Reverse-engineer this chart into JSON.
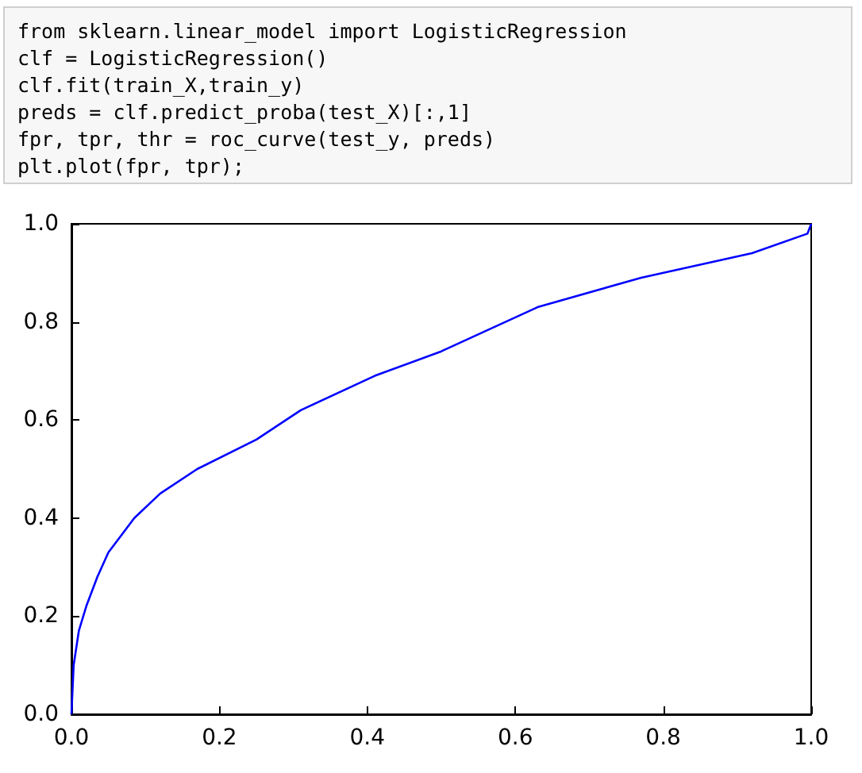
{
  "chart_data": {
    "type": "line",
    "annotations": [
      "from sklearn.linear_model import LogisticRegression",
      "clf = LogisticRegression()",
      "clf.fit(train_X,train_y)",
      "preds = clf.predict_proba(test_X)[:,1]",
      "fpr, tpr, thr = roc_curve(test_y, preds)",
      "plt.plot(fpr, tpr);"
    ],
    "x": [
      0,
      0.003,
      0.01,
      0.02,
      0.035,
      0.05,
      0.065,
      0.085,
      0.12,
      0.17,
      0.25,
      0.31,
      0.41,
      0.5,
      0.63,
      0.77,
      0.92,
      0.995,
      1
    ],
    "series": [
      {
        "color": "#0000ff",
        "values": [
          0,
          0.1,
          0.17,
          0.22,
          0.28,
          0.33,
          0.36,
          0.4,
          0.45,
          0.5,
          0.56,
          0.62,
          0.69,
          0.74,
          0.83,
          0.89,
          0.94,
          0.98,
          1
        ]
      }
    ],
    "xlim": [
      0,
      1
    ],
    "ylim": [
      0,
      1
    ],
    "xticks": [
      {
        "value": 0,
        "label": "0.0"
      },
      {
        "value": 0.2,
        "label": "0.2"
      },
      {
        "value": 0.4,
        "label": "0.4"
      },
      {
        "value": 0.6,
        "label": "0.6"
      },
      {
        "value": 0.8,
        "label": "0.8"
      },
      {
        "value": 1,
        "label": "1.0"
      }
    ],
    "yticks": [
      {
        "value": 0,
        "label": "0.0"
      },
      {
        "value": 0.2,
        "label": "0.2"
      },
      {
        "value": 0.4,
        "label": "0.4"
      },
      {
        "value": 0.6,
        "label": "0.6"
      },
      {
        "value": 0.8,
        "label": "0.8"
      },
      {
        "value": 1,
        "label": "1.0"
      }
    ],
    "grid": false,
    "marker": "none",
    "line_style": "solid"
  }
}
